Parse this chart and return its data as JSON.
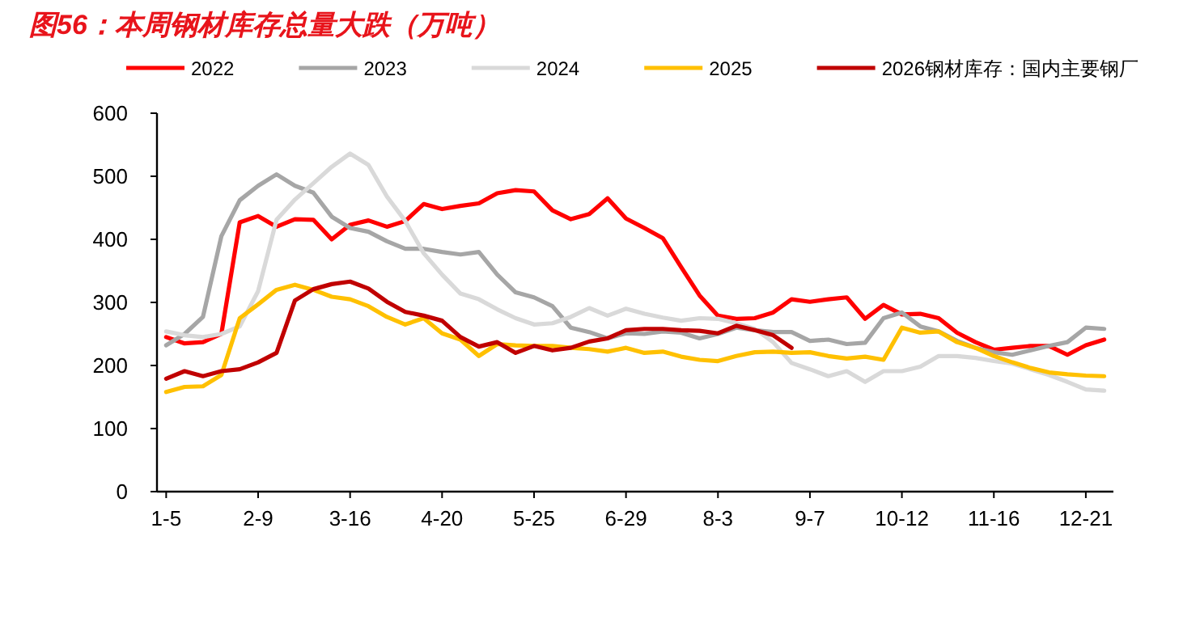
{
  "chart_data": {
    "type": "line",
    "title": "图56：本周钢材库存总量大跌（万吨）",
    "categories": [
      "1-5",
      null,
      null,
      null,
      null,
      "2-9",
      null,
      null,
      null,
      null,
      "3-16",
      null,
      null,
      null,
      null,
      "4-20",
      null,
      null,
      null,
      null,
      "5-25",
      null,
      null,
      null,
      null,
      "6-29",
      null,
      null,
      null,
      null,
      "8-3",
      null,
      null,
      null,
      null,
      "9-7",
      null,
      null,
      null,
      null,
      "10-12",
      null,
      null,
      null,
      null,
      "11-16",
      null,
      null,
      null,
      null,
      "12-21",
      null
    ],
    "series": [
      {
        "name": "2022",
        "color": "#ff0000",
        "values": [
          245,
          235,
          237,
          250,
          427,
          437,
          420,
          432,
          431,
          400,
          423,
          430,
          420,
          429,
          456,
          448,
          453,
          457,
          473,
          478,
          476,
          446,
          432,
          440,
          465,
          433,
          418,
          402,
          356,
          311,
          279,
          274,
          275,
          284,
          305,
          301,
          305,
          308,
          274,
          296,
          281,
          282,
          275,
          252,
          237,
          225,
          228,
          231,
          231,
          217,
          232,
          241
        ]
      },
      {
        "name": "2023",
        "color": "#a6a6a6",
        "values": [
          232,
          250,
          277,
          405,
          462,
          485,
          503,
          485,
          474,
          436,
          418,
          412,
          397,
          385,
          385,
          380,
          376,
          380,
          344,
          316,
          308,
          294,
          260,
          253,
          243,
          251,
          250,
          254,
          252,
          243,
          250,
          260,
          256,
          253,
          253,
          239,
          241,
          234,
          236,
          275,
          284,
          262,
          254,
          239,
          228,
          221,
          217,
          224,
          231,
          237,
          260,
          258
        ]
      },
      {
        "name": "2024",
        "color": "#d9d9d9",
        "values": [
          254,
          248,
          245,
          250,
          262,
          318,
          431,
          463,
          489,
          515,
          536,
          518,
          468,
          429,
          378,
          344,
          314,
          305,
          289,
          275,
          265,
          267,
          277,
          291,
          279,
          290,
          282,
          276,
          271,
          275,
          274,
          267,
          258,
          237,
          204,
          194,
          183,
          191,
          174,
          191,
          191,
          198,
          215,
          215,
          212,
          207,
          203,
          194,
          185,
          174,
          162,
          160
        ]
      },
      {
        "name": "2025",
        "color": "#ffc000",
        "values": [
          158,
          166,
          167,
          185,
          275,
          297,
          320,
          328,
          320,
          309,
          305,
          294,
          277,
          265,
          275,
          251,
          241,
          215,
          234,
          232,
          231,
          231,
          228,
          226,
          222,
          228,
          220,
          222,
          214,
          209,
          207,
          215,
          221,
          222,
          220,
          221,
          215,
          211,
          214,
          209,
          260,
          252,
          254,
          237,
          228,
          215,
          205,
          196,
          189,
          186,
          184,
          183
        ]
      },
      {
        "name": "2026钢材库存：国内主要钢厂",
        "color": "#c00000",
        "values": [
          179,
          191,
          183,
          191,
          194,
          205,
          220,
          303,
          321,
          329,
          333,
          322,
          301,
          285,
          279,
          271,
          245,
          230,
          237,
          220,
          231,
          224,
          228,
          238,
          243,
          256,
          258,
          258,
          256,
          255,
          251,
          263,
          256,
          248,
          228,
          null,
          null,
          null,
          null,
          null,
          null,
          null,
          null,
          null,
          null,
          null,
          null,
          null,
          null,
          null,
          null,
          null
        ]
      }
    ],
    "ylim": [
      0,
      600
    ],
    "yticks": [
      0,
      100,
      200,
      300,
      400,
      500,
      600
    ],
    "grid": false,
    "legend": "top",
    "marker": "none",
    "line_style": "solid"
  }
}
